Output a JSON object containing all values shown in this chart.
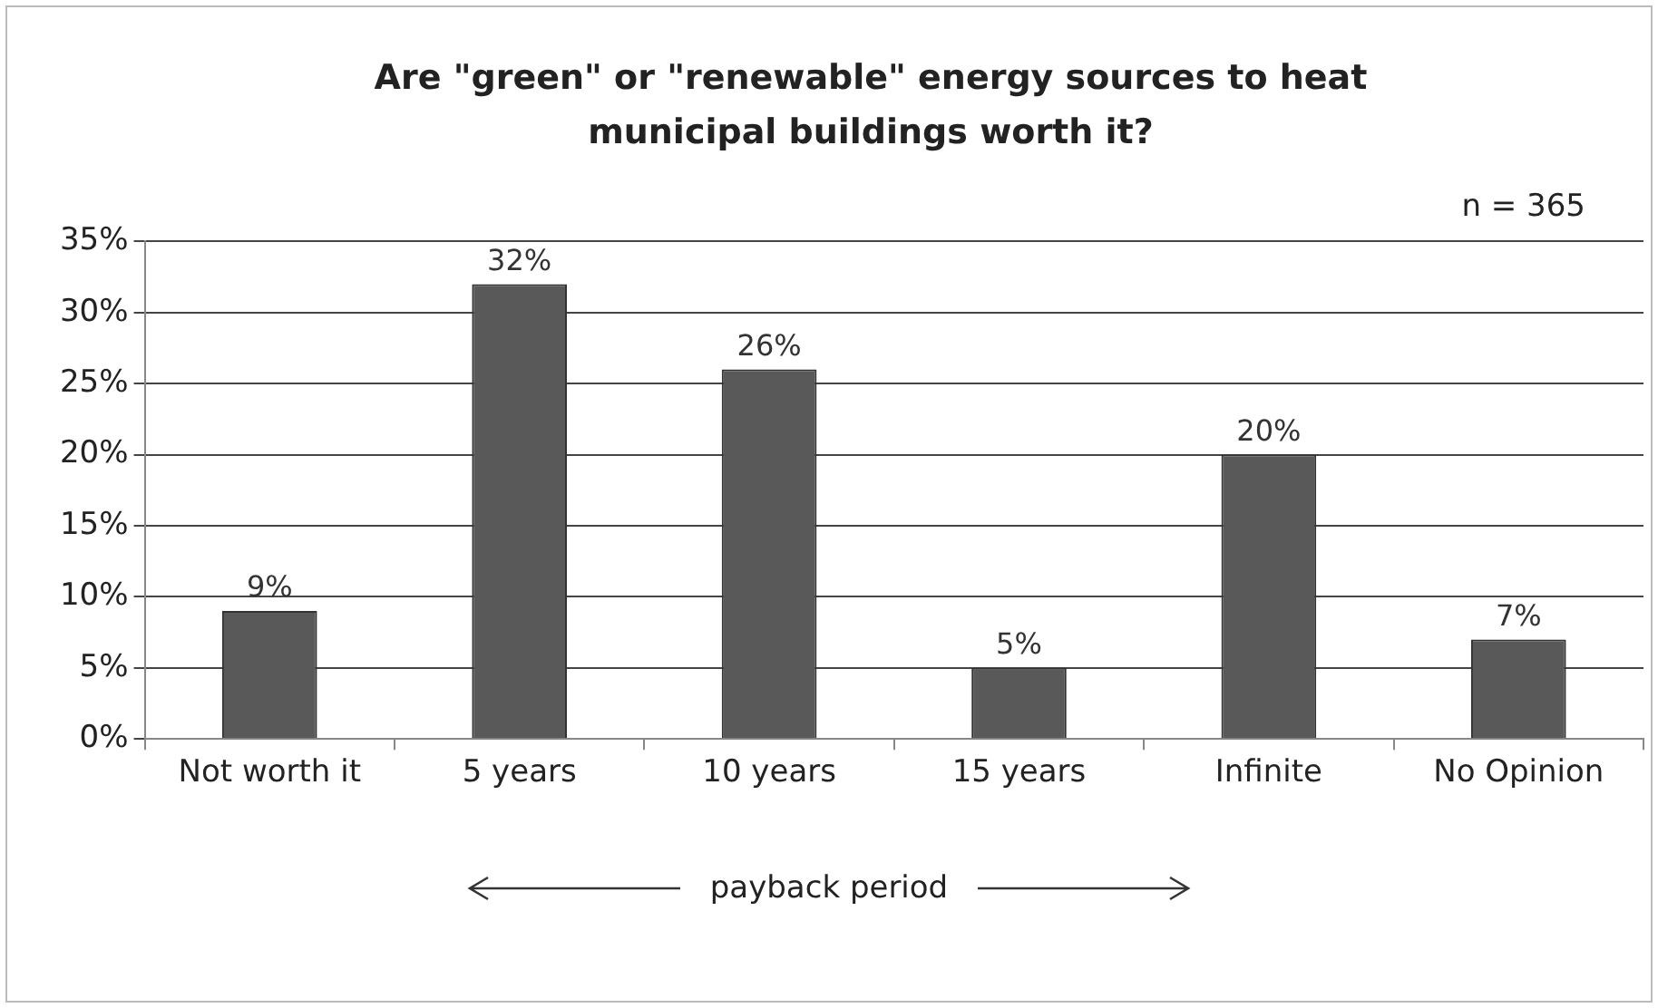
{
  "chart_data": {
    "type": "bar",
    "title": "Are \"green\" or \"renewable\" energy sources to heat municipal buildings worth it?",
    "xlabel": "payback period",
    "annotations": [
      "n = 365"
    ],
    "categories": [
      "Not worth it",
      "5 years",
      "10 years",
      "15 years",
      "Infinite",
      "No Opinion"
    ],
    "values": [
      9,
      32,
      26,
      5,
      20,
      7
    ],
    "value_labels": [
      "9%",
      "32%",
      "26%",
      "5%",
      "20%",
      "7%"
    ],
    "color": "#595959",
    "ylim": [
      0,
      35
    ],
    "yticks": [
      {
        "value": 0,
        "label": "0%"
      },
      {
        "value": 5,
        "label": "5%"
      },
      {
        "value": 10,
        "label": "10%"
      },
      {
        "value": 15,
        "label": "15%"
      },
      {
        "value": 20,
        "label": "20%"
      },
      {
        "value": 25,
        "label": "25%"
      },
      {
        "value": 30,
        "label": "30%"
      },
      {
        "value": 35,
        "label": "35%"
      }
    ],
    "grid": "y"
  }
}
